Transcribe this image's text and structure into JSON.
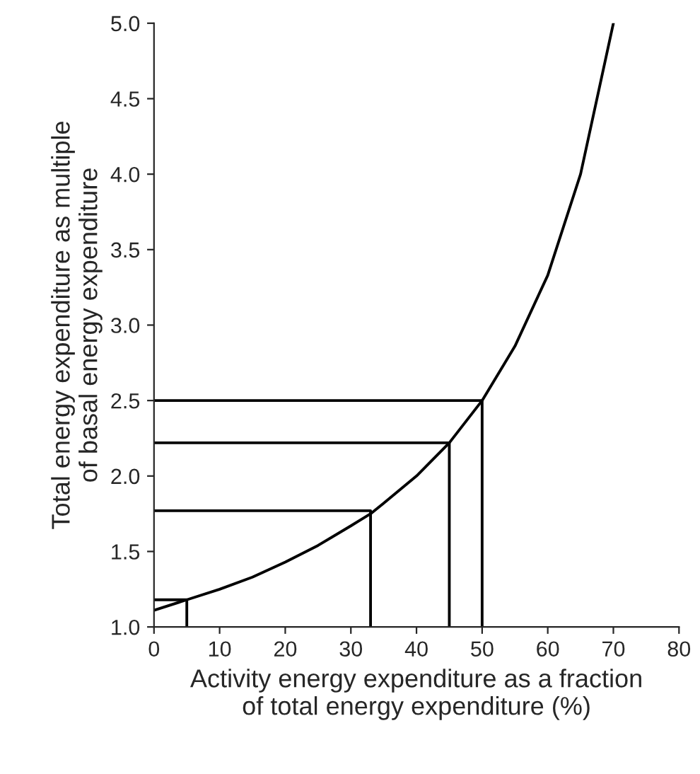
{
  "chart_data": {
    "type": "line",
    "xlabel": "Activity energy expenditure as a fraction\nof total energy expenditure (%)",
    "ylabel": "Total energy expenditure as multiple\nof basal energy expenditure",
    "series": [
      {
        "color": "#000000",
        "x": [
          0,
          5,
          10,
          15,
          20,
          25,
          30,
          33,
          35,
          40,
          45,
          50,
          55,
          60,
          65,
          70
        ],
        "values": [
          1.11,
          1.18,
          1.25,
          1.33,
          1.43,
          1.54,
          1.67,
          1.75,
          1.82,
          2.0,
          2.22,
          2.5,
          2.86,
          3.33,
          4.0,
          5.0
        ]
      },
      {
        "color": "#000000",
        "x": [
          0,
          5,
          5
        ],
        "values": [
          1.18,
          1.18,
          1.0
        ]
      },
      {
        "color": "#000000",
        "x": [
          0,
          33,
          33
        ],
        "values": [
          1.77,
          1.77,
          1.0
        ]
      },
      {
        "color": "#000000",
        "x": [
          0,
          45,
          45
        ],
        "values": [
          2.22,
          2.22,
          1.0
        ]
      },
      {
        "color": "#000000",
        "x": [
          0,
          50,
          50
        ],
        "values": [
          2.5,
          2.5,
          1.0
        ]
      }
    ],
    "xlim": [
      0,
      80
    ],
    "xticks": [
      0,
      10,
      20,
      30,
      40,
      50,
      60,
      70,
      80
    ],
    "ylim": [
      1.0,
      5.0
    ],
    "yticks": [
      {
        "value": 1.0,
        "label": "1.0"
      },
      {
        "value": 1.5,
        "label": "1.5"
      },
      {
        "value": 2.0,
        "label": "2.0"
      },
      {
        "value": 2.5,
        "label": "2.5"
      },
      {
        "value": 3.0,
        "label": "3.0"
      },
      {
        "value": 3.5,
        "label": "3.5"
      },
      {
        "value": 4.0,
        "label": "4.0"
      },
      {
        "value": 4.5,
        "label": "4.5"
      },
      {
        "value": 5.0,
        "label": "5.0"
      }
    ],
    "grid": false,
    "legend": false,
    "marker": "none",
    "line_style": "solid"
  }
}
